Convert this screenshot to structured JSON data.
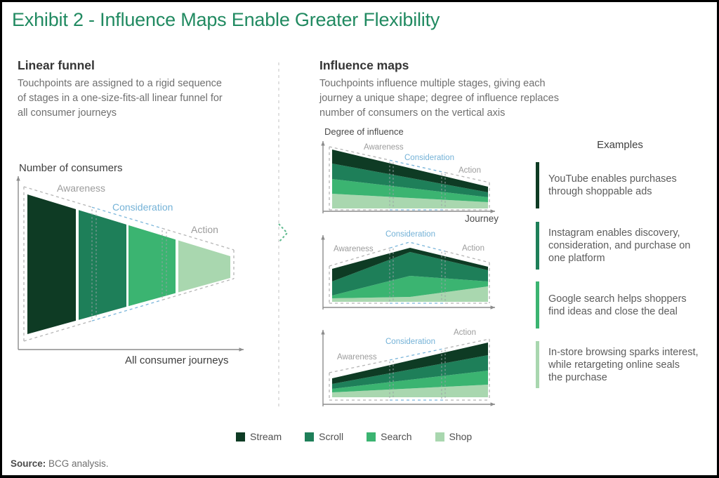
{
  "title": "Exhibit 2 - Influence Maps Enable Greater Flexibility",
  "colors": {
    "accent_green": "#218A61",
    "stage_blue": "#74B2D7",
    "stage_gray": "#9C9C9C",
    "divider_chevron_green": "#5CB98D"
  },
  "stages": {
    "awareness": "Awareness",
    "consideration": "Consideration",
    "action": "Action"
  },
  "linear_funnel": {
    "heading": "Linear funnel",
    "description_lines": [
      "Touchpoints are assigned to a rigid sequence",
      "of stages in a one-size-fits-all linear funnel for",
      "all consumer journeys"
    ],
    "y_axis_label": "Number of consumers",
    "x_axis_label": "All consumer journeys"
  },
  "influence_maps": {
    "heading": "Influence maps",
    "description_lines": [
      "Touchpoints influence multiple stages, giving each",
      "journey a unique shape; degree of influence replaces",
      "number of consumers on the vertical axis"
    ],
    "y_axis_label": "Degree of influence",
    "x_axis_label": "Journey"
  },
  "examples": {
    "header": "Examples",
    "items": [
      {
        "color": "#0E3B24",
        "lines": [
          "YouTube enables purchases",
          "through shoppable ads"
        ]
      },
      {
        "color": "#1E7F59",
        "lines": [
          "Instagram enables discovery,",
          "consideration, and purchase on",
          "one platform"
        ]
      },
      {
        "color": "#3BB471",
        "lines": [
          "Google search helps shoppers",
          "find ideas and close the deal"
        ]
      },
      {
        "color": "#A9D7AF",
        "lines": [
          "In-store browsing sparks interest,",
          "while retargeting online seals",
          "the purchase"
        ]
      }
    ]
  },
  "legend": {
    "items": [
      {
        "label": "Stream",
        "color": "#0E3B24"
      },
      {
        "label": "Scroll",
        "color": "#1E7F59"
      },
      {
        "label": "Search",
        "color": "#3BB471"
      },
      {
        "label": "Shop",
        "color": "#A9D7AF"
      }
    ]
  },
  "source": {
    "label": "Source:",
    "text": " BCG analysis."
  },
  "chart_data": [
    {
      "type": "funnel",
      "title": "Linear funnel",
      "xlabel": "All consumer journeys",
      "ylabel": "Number of consumers",
      "stages": [
        "Awareness",
        "Consideration",
        "Action"
      ],
      "stage_boundaries_x": [
        0.33,
        0.67
      ],
      "height_left": 1.0,
      "height_right": 0.16,
      "segments": [
        {
          "name": "Stream",
          "color": "#0E3B24",
          "span": [
            0.0,
            0.2388
          ]
        },
        {
          "name": "Scroll",
          "color": "#1E7F59",
          "span": [
            0.2526,
            0.4879
          ]
        },
        {
          "name": "Search",
          "color": "#3BB471",
          "span": [
            0.4983,
            0.7301
          ]
        },
        {
          "name": "Shop",
          "color": "#A9D7AF",
          "span": [
            0.7439,
            1.0
          ]
        }
      ]
    },
    {
      "type": "area",
      "title": "Influence map 1 - influence declines along journey",
      "xlabel": "Journey",
      "ylabel": "Degree of influence",
      "x": [
        0,
        0.5,
        1
      ],
      "stage_boundaries_x": [
        0.38,
        0.72
      ],
      "series": [
        {
          "name": "Stream",
          "color": "#0E3B24",
          "values": [
            0.2,
            0.14,
            0.08
          ]
        },
        {
          "name": "Scroll",
          "color": "#1E7F59",
          "values": [
            0.22,
            0.145,
            0.07
          ]
        },
        {
          "name": "Search",
          "color": "#3BB471",
          "values": [
            0.21,
            0.14,
            0.07
          ]
        },
        {
          "name": "Shop",
          "color": "#A9D7AF",
          "values": [
            0.21,
            0.15,
            0.09
          ]
        }
      ]
    },
    {
      "type": "area",
      "title": "Influence map 2 - influence peaks at consideration",
      "xlabel": "Journey",
      "ylabel": "Degree of influence",
      "x": [
        0,
        0.5,
        1
      ],
      "stage_boundaries_x": [
        0.38,
        0.72
      ],
      "series": [
        {
          "name": "Stream",
          "color": "#0E3B24",
          "values": [
            0.18,
            0.06,
            0.05
          ]
        },
        {
          "name": "Scroll",
          "color": "#1E7F59",
          "values": [
            0.2,
            0.34,
            0.16
          ]
        },
        {
          "name": "Search",
          "color": "#3BB471",
          "values": [
            0.04,
            0.3,
            0.07
          ]
        },
        {
          "name": "Shop",
          "color": "#A9D7AF",
          "values": [
            0.05,
            0.07,
            0.22
          ]
        }
      ]
    },
    {
      "type": "area",
      "title": "Influence map 3 - influence grows toward action",
      "xlabel": "Journey",
      "ylabel": "Degree of influence",
      "x": [
        0,
        0.5,
        1
      ],
      "stage_boundaries_x": [
        0.38,
        0.72
      ],
      "series": [
        {
          "name": "Stream",
          "color": "#0E3B24",
          "values": [
            0.08,
            0.13,
            0.18
          ]
        },
        {
          "name": "Scroll",
          "color": "#1E7F59",
          "values": [
            0.07,
            0.145,
            0.22
          ]
        },
        {
          "name": "Search",
          "color": "#3BB471",
          "values": [
            0.05,
            0.125,
            0.2
          ]
        },
        {
          "name": "Shop",
          "color": "#A9D7AF",
          "values": [
            0.07,
            0.125,
            0.18
          ]
        }
      ]
    }
  ]
}
